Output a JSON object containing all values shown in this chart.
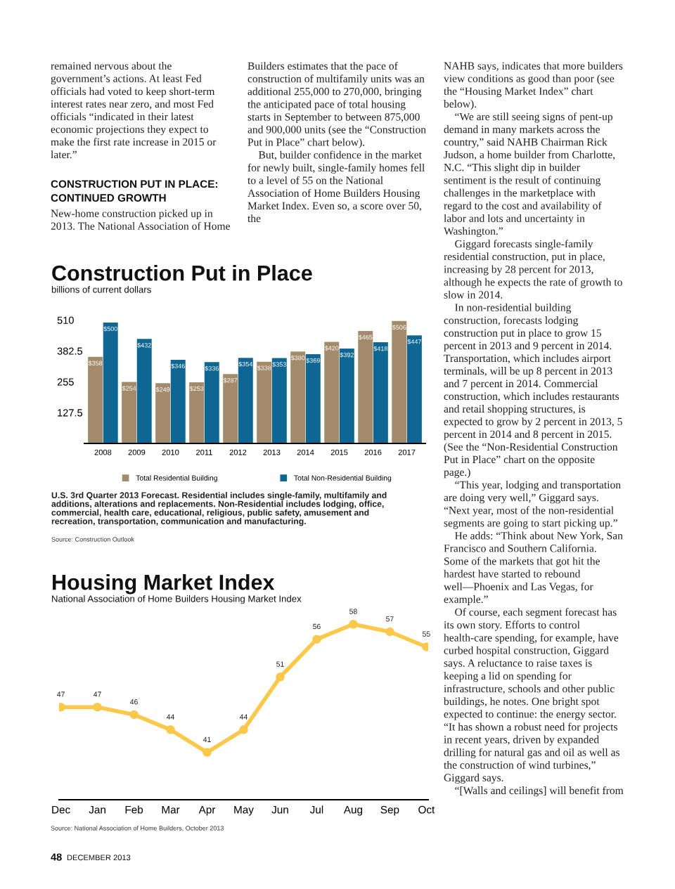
{
  "chart_data": [
    {
      "type": "other",
      "annotations": [
        "remained nervous about the government’s actions. At least Fed officials had voted to keep short-term interest rates near zero, and most Fed officials “indicated in their latest economic projections they expect to make the first rate increase in 2015 or later.”",
        "CONSTRUCTION PUT IN PLACE: CONTINUED GROWTH",
        "New-home construction picked up in 2013. The National Association of Home"
      ]
    },
    {
      "type": "other",
      "annotations": [
        "Builders estimates that the pace of construction of multifamily units was an additional 255,000 to 270,000, bringing the anticipated pace of total housing starts in September to between 875,000 and 900,000 units (see the “Construction Put in Place” chart below).",
        "    But, builder confidence in the market for newly built, single-family homes fell to a level of 55 on the National Association of Home Builders Housing Market Index. Even so, a score over 50, the"
      ]
    },
    {
      "type": "other",
      "annotations": [
        "NAHB says, indicates that more builders view conditions as good than poor (see the “Housing Market Index” chart below).",
        "    “We are still seeing signs of pent-up demand in many markets across the country,” said NAHB Chairman Rick Judson, a home builder from Charlotte, N.C. “This slight dip in builder sentiment is the result of continuing challenges in the marketplace with regard to the cost and availability of labor and lots and uncertainty in Washington.”",
        "    Giggard forecasts single-family residential construction, put in place, increasing by 28 percent for 2013, although he expects the rate of growth to slow in 2014.",
        "    In non-residential building construction, forecasts lodging construction put in place to grow 15 percent in 2013 and 9 percent in 2014. Transportation, which includes airport terminals, will be up 8 percent in 2013 and 7 percent in 2014. Commercial construction, which includes restaurants and retail shopping structures, is expected to grow by 2 percent in 2013, 5 percent in 2014 and 8 percent in 2015. (See the “Non-Residential Construction Put in Place” chart on the opposite page.)",
        "    “This year, lodging and transportation are doing very well,” Giggard says. “Next year, most of the non-residential segments are going to start picking up.”",
        "    He adds: “Think about New York, San Francisco and Southern California. Some of the markets that got hit the hardest have started to rebound well—Phoenix and Las Vegas, for example.”",
        "    Of course, each segment forecast has its own story. Efforts to control health-care spending, for example, have curbed hospital construction, Giggard says. A reluctance to raise taxes is keeping a lid on spending for infrastructure, schools and other public buildings, he notes. One bright spot expected to continue: the energy sector. “It has shown a robust need for projects in recent years, driven by expanded drilling for natural gas and oil as well as the construction of wind turbines,” Giggard says.",
        "    “[Walls and ceilings] will benefit from"
      ]
    },
    {
      "type": "bar",
      "title": "Construction Put in Place",
      "subtitle": "billions of current dollars",
      "categories": [
        "2008",
        "2009",
        "2010",
        "2011",
        "2012",
        "2013",
        "2014",
        "2015",
        "2016",
        "2017"
      ],
      "series": [
        {
          "name": "Total Residential Building",
          "color": "#a38a6b",
          "values": [
            358,
            254,
            249,
            253,
            287,
            338,
            380,
            420,
            465,
            506
          ],
          "value_labels": [
            "$358",
            "$254",
            "$249",
            "$253",
            "$287",
            "$338",
            "$380",
            "$420",
            "$465",
            "$506"
          ]
        },
        {
          "name": "Total Non-Residential Building",
          "color": "#0f6693",
          "values": [
            500,
            432,
            346,
            336,
            354,
            353,
            369,
            392,
            418,
            447
          ],
          "value_labels": [
            "$500",
            "$432",
            "$346",
            "$336",
            "$354",
            "$353",
            "$369",
            "$392",
            "$418",
            "$447"
          ]
        }
      ],
      "ylim": [
        0,
        520
      ],
      "yticks": [
        127.5,
        255,
        382.5,
        510
      ],
      "legend": "bottom",
      "annotations": [
        "U.S. 3rd Quarter 2013 Forecast. Residential includes single-family, multifamily and additions, alterations and replacements. Non-Residential includes lodging, office, commercial, health care, educational, religious, public safety, amusement and recreation, transportation, communication and manufacturing.",
        "Source: Construction Outlook"
      ]
    },
    {
      "type": "line",
      "title": "Housing Market Index",
      "subtitle": "National Association of Home Builders Housing Market Index",
      "categories": [
        "Dec",
        "Jan",
        "Feb",
        "Mar",
        "Apr",
        "May",
        "Jun",
        "Jul",
        "Aug",
        "Sep",
        "Oct"
      ],
      "series": [
        {
          "color": "#fbc849",
          "values": [
            47,
            47,
            46,
            44,
            41,
            44,
            51,
            56,
            58,
            57,
            55
          ]
        }
      ],
      "data_labels": true,
      "marker": "circle",
      "tick_labels": "x",
      "annotations": [
        "Source: National Association of Home Builders, October 2013"
      ]
    },
    {
      "type": "other",
      "annotations": [
        "48",
        "DECEMBER 2013"
      ]
    }
  ]
}
